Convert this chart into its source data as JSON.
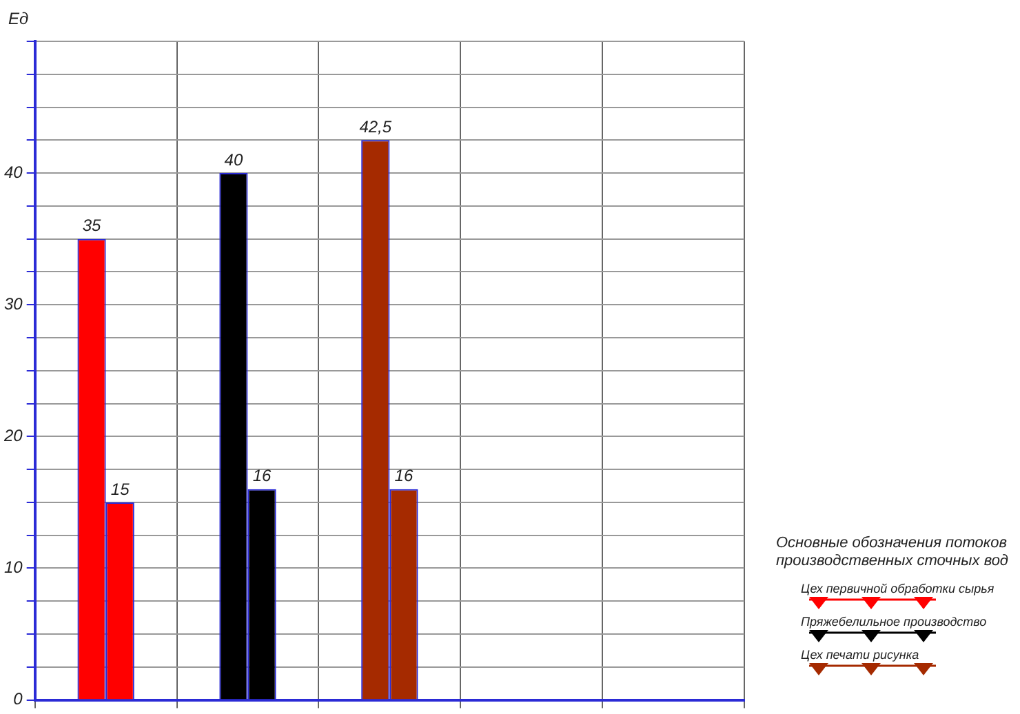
{
  "chart_data": {
    "type": "bar",
    "ylabel": "Ед",
    "categories": [
      null,
      null,
      null,
      null,
      null
    ],
    "series": [
      {
        "colors": [
          "#ff0000",
          "#000000",
          "#a52a00",
          "#a52a00",
          "#a52a00"
        ],
        "values": [
          35,
          40,
          42.5,
          null,
          null
        ],
        "value_labels": [
          "35",
          "40",
          "42,5",
          null,
          null
        ]
      },
      {
        "colors": [
          "#ff0000",
          "#000000",
          "#a52a00",
          "#a52a00",
          "#a52a00"
        ],
        "values": [
          15,
          16,
          16,
          null,
          null
        ],
        "value_labels": [
          "15",
          "16",
          "16",
          null,
          null
        ]
      }
    ],
    "ylim": [
      0,
      50
    ],
    "yticks": [
      0,
      {
        "value": 2.5,
        "label": null
      },
      {
        "value": 5,
        "label": null
      },
      {
        "value": 7.5,
        "label": null
      },
      10,
      {
        "value": 12.5,
        "label": null
      },
      {
        "value": 15,
        "label": null
      },
      {
        "value": 17.5,
        "label": null
      },
      20,
      {
        "value": 22.5,
        "label": null
      },
      {
        "value": 25,
        "label": null
      },
      {
        "value": 27.5,
        "label": null
      },
      30,
      {
        "value": 32.5,
        "label": null
      },
      {
        "value": 35,
        "label": null
      },
      {
        "value": 37.5,
        "label": null
      },
      40,
      {
        "value": 42.5,
        "label": null
      },
      {
        "value": 45,
        "label": null
      },
      {
        "value": 47.5,
        "label": null
      },
      {
        "value": 50,
        "label": null
      }
    ],
    "grid": true,
    "tick_labels": "y",
    "legend_title": "Основные обозначения потоков производственных сточных вод",
    "annotations": [
      "Цех первичной обработки сырья",
      "Пряжебелильное производство",
      "Цех печати рисунка"
    ]
  }
}
